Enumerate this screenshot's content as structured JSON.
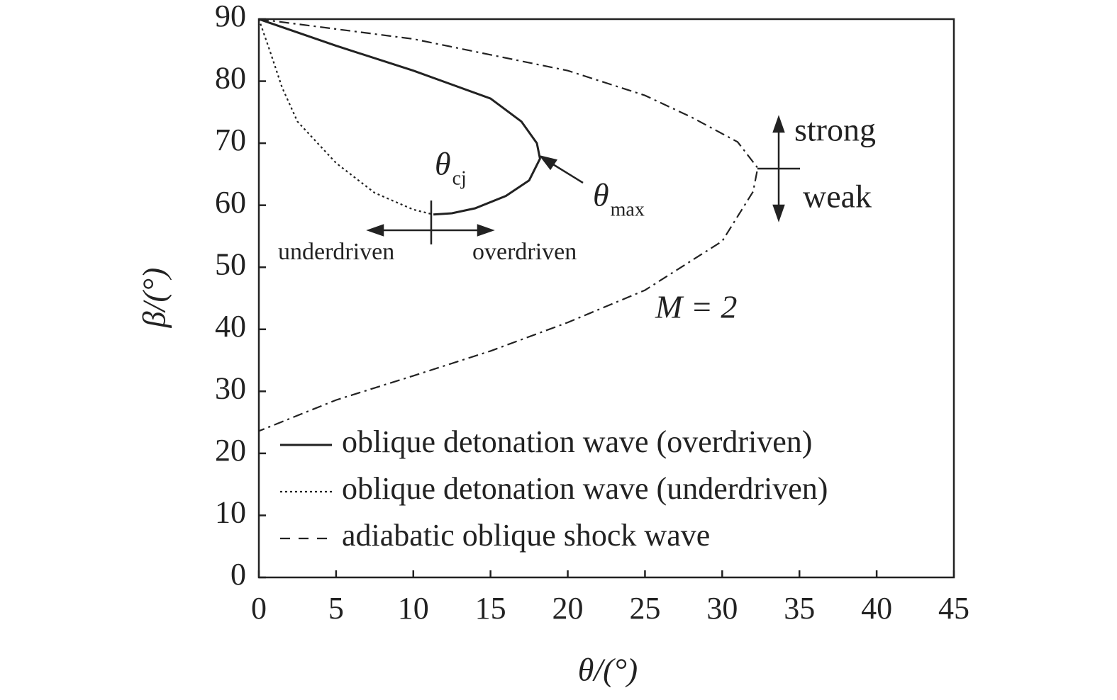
{
  "chart_data": {
    "type": "line",
    "x_label": "θ/(°)",
    "y_label": "β/(°)",
    "xlim": [
      0,
      45
    ],
    "ylim": [
      0,
      90
    ],
    "xticks": [
      0,
      5,
      10,
      15,
      20,
      25,
      30,
      35,
      40,
      45
    ],
    "yticks": [
      0,
      10,
      20,
      30,
      40,
      50,
      60,
      70,
      80,
      90
    ],
    "legend": "lower left",
    "series": [
      {
        "name": "oblique detonation wave (overdriven)",
        "color": "#222222",
        "style": "solid",
        "x": [
          0,
          5,
          10,
          15,
          17,
          18,
          18.2,
          17.5,
          16,
          14,
          12.5,
          11.3
        ],
        "values": [
          90,
          85.7,
          81.7,
          77.2,
          73.5,
          70,
          67.5,
          64,
          61.5,
          59.5,
          58.7,
          58.5
        ]
      },
      {
        "name": "oblique detonation wave (underdriven)",
        "color": "#222222",
        "style": "dotted",
        "x": [
          0,
          0.7,
          1.5,
          2.5,
          5,
          7.5,
          10,
          11.3
        ],
        "values": [
          90,
          85,
          79,
          73.5,
          66.8,
          62,
          59.3,
          58.5
        ]
      },
      {
        "name": "adiabatic oblique shock wave",
        "color": "#222222",
        "style": "dashdot",
        "x": [
          0,
          10,
          20,
          25,
          28,
          31,
          32.3,
          32,
          30,
          25,
          20,
          15,
          10,
          5,
          0
        ],
        "values": [
          90,
          86.8,
          81.7,
          77.7,
          74.2,
          70.2,
          66,
          62.2,
          54.2,
          46.3,
          41.1,
          36.5,
          32.5,
          28.6,
          23.6
        ]
      }
    ],
    "annotations": [
      {
        "text": "θ",
        "subscript": "cj"
      },
      {
        "text": "θ",
        "subscript": "max"
      },
      {
        "text": "strong"
      },
      {
        "text": "weak"
      },
      {
        "text": "underdriven"
      },
      {
        "text": "overdriven"
      },
      {
        "text": "M = 2"
      }
    ]
  }
}
